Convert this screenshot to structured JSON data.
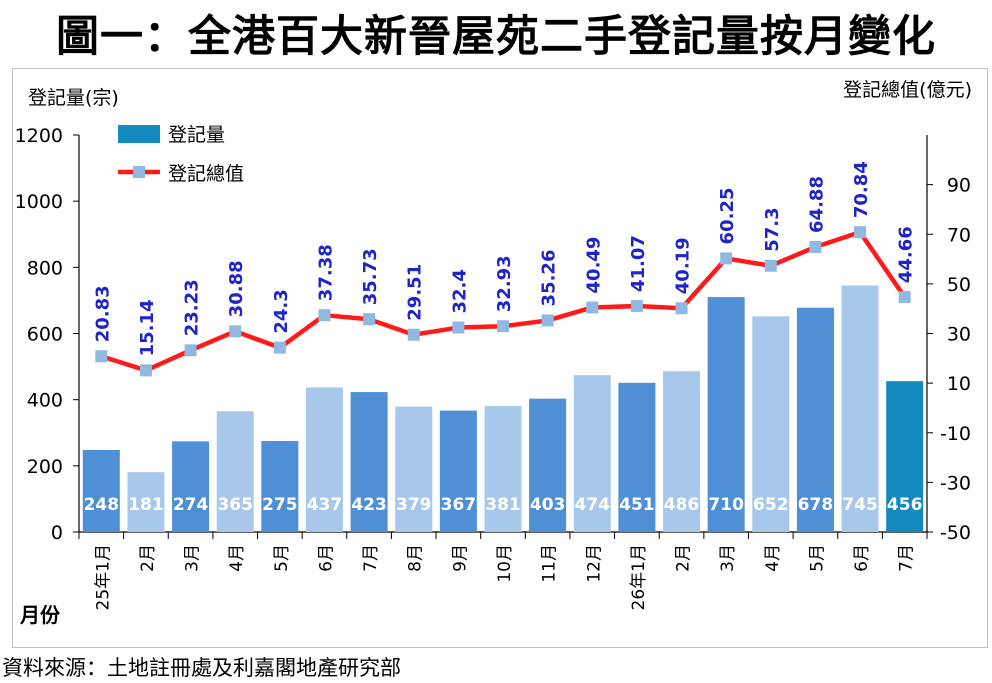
{
  "title": "圖一：全港百大新晉屋苑二手登記量按月變化",
  "source": "資料來源：土地註冊處及利嘉閣地產研究部",
  "chart_data": {
    "type": "bar+line",
    "left_axis_title": "登記量(宗)",
    "right_axis_title": "登記總值(億元)",
    "x_axis_title": "月份",
    "categories": [
      "25年1月",
      "2月",
      "3月",
      "4月",
      "5月",
      "6月",
      "7月",
      "8月",
      "9月",
      "10月",
      "11月",
      "12月",
      "26年1月",
      "2月",
      "3月",
      "4月",
      "5月",
      "6月",
      "7月"
    ],
    "left_axis": {
      "min": 0,
      "max": 1200,
      "ticks": [
        0,
        200,
        400,
        600,
        800,
        1000,
        1200
      ]
    },
    "right_axis": {
      "min": -50,
      "max": 110,
      "ticks": [
        -50,
        -30,
        -10,
        10,
        30,
        50,
        70,
        90
      ]
    },
    "series": [
      {
        "name": "登記量",
        "type": "bar",
        "axis": "left",
        "values": [
          248,
          181,
          274,
          365,
          275,
          437,
          423,
          379,
          367,
          381,
          403,
          474,
          451,
          486,
          710,
          652,
          678,
          745,
          456
        ],
        "value_labels": [
          "248",
          "181",
          "274",
          "365",
          "275",
          "437",
          "423",
          "379",
          "367",
          "381",
          "403",
          "474",
          "451",
          "486",
          "710",
          "652",
          "678",
          "745",
          "456"
        ]
      },
      {
        "name": "登記總值",
        "type": "line",
        "axis": "right",
        "values": [
          20.83,
          15.14,
          23.23,
          30.88,
          24.3,
          37.38,
          35.73,
          29.51,
          32.4,
          32.93,
          35.26,
          40.49,
          41.07,
          40.19,
          60.25,
          57.3,
          64.88,
          70.84,
          44.66
        ],
        "value_labels": [
          "20.83",
          "15.14",
          "23.23",
          "30.88",
          "24.3",
          "37.38",
          "35.73",
          "29.51",
          "32.4",
          "32.93",
          "35.26",
          "40.49",
          "41.07",
          "40.19",
          "60.25",
          "57.3",
          "64.88",
          "70.84",
          "44.66"
        ]
      }
    ],
    "legend_position": "top-left",
    "gridlines": false,
    "colors": {
      "bar_dark": "#4f8fd6",
      "bar_light": "#a7c8ea",
      "bar_last": "#1489bd",
      "line": "#ff1a1a",
      "marker": "#8fb9e0",
      "line_label": "#1f24c8",
      "bar_label": "#ffffff"
    }
  }
}
